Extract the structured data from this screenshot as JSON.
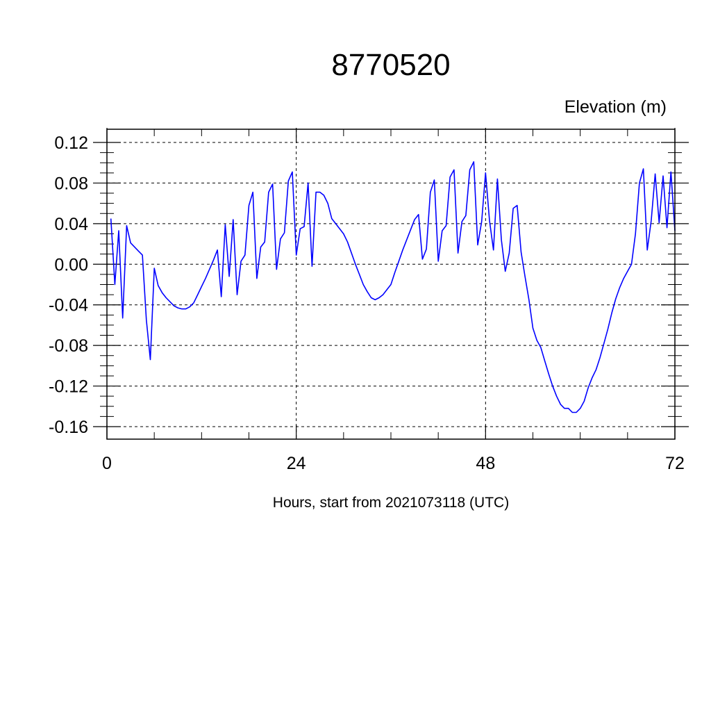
{
  "chart_data": {
    "type": "line",
    "title": "8770520",
    "ylabel": "Elevation (m)",
    "xlabel": "Hours, start from 2021073118 (UTC)",
    "xlim": [
      0,
      72
    ],
    "ylim": [
      -0.16,
      0.12
    ],
    "x_ticks": [
      0,
      24,
      48,
      72
    ],
    "x_tick_labels": [
      "0",
      "24",
      "48",
      "72"
    ],
    "y_ticks": [
      0.12,
      0.08,
      0.04,
      0.0,
      -0.04,
      -0.08,
      -0.12,
      -0.16
    ],
    "y_tick_labels": [
      "0.12",
      "0.08",
      "0.04",
      "0.00",
      "-0.04",
      "-0.08",
      "-0.12",
      "-0.16"
    ],
    "grid": "dashed",
    "line_color": "#0000ff",
    "series": [
      {
        "x": [
          0.5,
          1.0,
          1.5,
          2.0,
          2.5,
          3.0,
          4.0,
          4.5,
          5.0,
          5.5,
          6.0,
          6.5,
          7.0,
          7.5,
          8.0,
          8.5,
          9.0,
          9.5,
          10.0,
          10.5,
          11.0,
          11.5,
          12.0,
          12.5,
          13.0,
          13.5,
          14.0,
          14.5,
          15.0,
          15.5,
          16.0,
          16.5,
          17.0,
          17.5,
          18.0,
          18.5,
          19.0,
          19.5,
          20.0,
          20.5,
          21.0,
          21.5,
          22.0,
          22.5,
          23.0,
          23.5,
          24.0,
          24.5,
          25.0,
          25.5,
          26.0,
          26.5,
          27.0,
          27.5,
          28.0,
          28.5,
          29.0,
          29.5,
          30.0,
          30.5,
          31.0,
          31.5,
          32.0,
          32.5,
          33.0,
          33.5,
          34.0,
          34.5,
          35.0,
          35.5,
          36.0,
          36.5,
          37.0,
          37.5,
          38.0,
          38.5,
          39.0,
          39.5,
          40.0,
          40.5,
          41.0,
          41.5,
          42.0,
          42.5,
          43.0,
          43.5,
          44.0,
          44.5,
          45.0,
          45.5,
          46.0,
          46.5,
          47.0,
          47.5,
          48.0,
          48.5,
          49.0,
          49.5,
          50.0,
          50.5,
          51.0,
          51.5,
          52.0,
          52.5,
          53.0,
          53.5,
          54.0,
          54.5,
          55.0,
          55.5,
          56.0,
          56.5,
          57.0,
          57.5,
          58.0,
          58.5,
          59.0,
          59.5,
          60.0,
          60.5,
          61.0,
          61.5,
          62.0,
          62.5,
          63.0,
          63.5,
          64.0,
          64.5,
          65.0,
          65.5,
          66.0,
          66.5,
          67.0,
          67.5,
          68.0,
          68.5,
          69.0,
          69.5,
          70.0,
          70.5,
          71.0,
          71.5,
          72.0
        ],
        "y": [
          0.045,
          -0.02,
          0.033,
          -0.053,
          0.038,
          0.021,
          0.013,
          0.009,
          -0.055,
          -0.094,
          -0.004,
          -0.021,
          -0.028,
          -0.033,
          -0.037,
          -0.041,
          -0.043,
          -0.044,
          -0.044,
          -0.042,
          -0.038,
          -0.03,
          -0.022,
          -0.014,
          -0.005,
          0.004,
          0.014,
          -0.032,
          0.039,
          -0.012,
          0.044,
          -0.03,
          0.003,
          0.009,
          0.058,
          0.071,
          -0.014,
          0.017,
          0.022,
          0.071,
          0.079,
          -0.005,
          0.025,
          0.031,
          0.082,
          0.091,
          0.009,
          0.035,
          0.037,
          0.08,
          -0.002,
          0.071,
          0.071,
          0.068,
          0.06,
          0.045,
          0.04,
          0.035,
          0.03,
          0.022,
          0.011,
          0.0,
          -0.01,
          -0.02,
          -0.027,
          -0.033,
          -0.035,
          -0.033,
          -0.03,
          -0.025,
          -0.02,
          -0.008,
          0.003,
          0.014,
          0.024,
          0.034,
          0.044,
          0.049,
          0.005,
          0.015,
          0.071,
          0.083,
          0.003,
          0.033,
          0.038,
          0.086,
          0.093,
          0.011,
          0.042,
          0.048,
          0.093,
          0.101,
          0.019,
          0.042,
          0.09,
          0.043,
          0.014,
          0.084,
          0.024,
          -0.007,
          0.011,
          0.055,
          0.058,
          0.012,
          -0.012,
          -0.035,
          -0.063,
          -0.075,
          -0.082,
          -0.095,
          -0.108,
          -0.12,
          -0.13,
          -0.138,
          -0.142,
          -0.142,
          -0.146,
          -0.146,
          -0.142,
          -0.135,
          -0.122,
          -0.112,
          -0.104,
          -0.092,
          -0.078,
          -0.064,
          -0.048,
          -0.034,
          -0.023,
          -0.014,
          -0.007,
          0.0,
          0.03,
          0.08,
          0.094,
          0.014,
          0.043,
          0.089,
          0.041,
          0.087,
          0.036,
          0.091,
          0.033
        ]
      }
    ]
  }
}
